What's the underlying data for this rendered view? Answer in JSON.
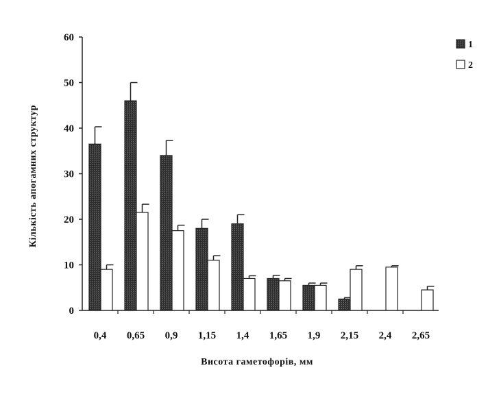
{
  "chart_data": {
    "type": "bar",
    "title": "",
    "xlabel": "Висота гаметофорів, мм",
    "ylabel": "Кількість апогамних структур",
    "categories": [
      "0,4",
      "0,65",
      "0,9",
      "1,15",
      "1,4",
      "1,65",
      "1,9",
      "2,15",
      "2,4",
      "2,65"
    ],
    "ylim": [
      0,
      60
    ],
    "yticks": [
      "0",
      "10",
      "20",
      "30",
      "40",
      "50",
      "60"
    ],
    "grid": false,
    "legend_position": "top-right",
    "series": [
      {
        "name": "1",
        "color": "#3a3a3a",
        "values": [
          36.5,
          46,
          34,
          18,
          19,
          7,
          5.5,
          2.5,
          0,
          0
        ],
        "errors": [
          3.8,
          4,
          3.3,
          2,
          2,
          0.7,
          0.5,
          0.3,
          0,
          0
        ]
      },
      {
        "name": "2",
        "color": "#ffffff",
        "values": [
          9,
          21.5,
          17.5,
          11,
          7,
          6.5,
          5.5,
          9,
          9.5,
          4.5
        ],
        "errors": [
          1,
          1.8,
          1.2,
          1,
          0.6,
          0.5,
          0.5,
          0.8,
          0.3,
          0.8
        ]
      }
    ]
  }
}
